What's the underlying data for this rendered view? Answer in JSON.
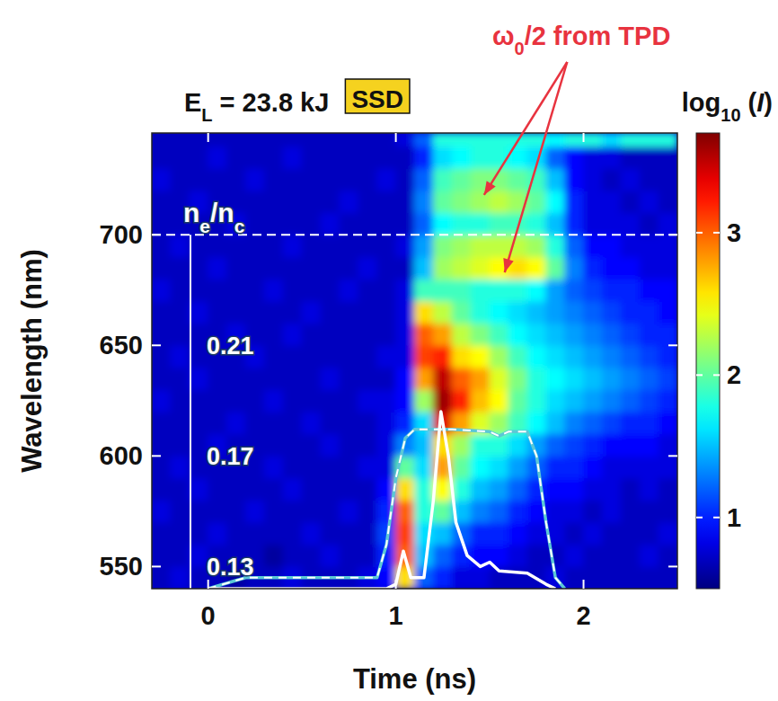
{
  "chart_data": {
    "type": "heatmap",
    "title": [
      {
        "text": "E"
      },
      {
        "text": "L",
        "sub": true
      },
      {
        "text": " = 23.8 kJ"
      }
    ],
    "badge": "SSD",
    "x_label": "Time (ns)",
    "y_label": "Wavelength (nm)",
    "xlim": [
      -0.3,
      2.5
    ],
    "ylim": [
      540,
      746
    ],
    "xticks": [
      0,
      1,
      2
    ],
    "yticks": [
      550,
      600,
      650,
      700
    ],
    "reference_line": 700,
    "density_label": [
      {
        "text": "n"
      },
      {
        "text": "e",
        "sub": true
      },
      {
        "text": "/"
      },
      {
        "text": "n"
      },
      {
        "text": "c",
        "sub": true
      }
    ],
    "density_ticks": [
      {
        "value": 650,
        "label": "0.21"
      },
      {
        "value": 600,
        "label": "0.17"
      },
      {
        "value": 550,
        "label": "0.13"
      }
    ],
    "annotation": {
      "parts": [
        {
          "text": "ω"
        },
        {
          "text": "0",
          "sub": true
        },
        {
          "text": "/2 from TPD"
        }
      ],
      "color": "#e8333f",
      "points": [
        [
          1.47,
          718
        ],
        [
          1.58,
          683
        ]
      ]
    },
    "colorbar": {
      "label": [
        {
          "text": "log"
        },
        {
          "text": "10",
          "sub": true
        },
        {
          "text": " ("
        },
        {
          "text": "I",
          "italic": true
        },
        {
          "text": ")"
        }
      ],
      "range": [
        0.5,
        3.7
      ],
      "ticks": [
        1,
        2,
        3
      ]
    },
    "x_bins": [
      -0.3,
      -0.2,
      -0.1,
      0,
      0.1,
      0.2,
      0.3,
      0.4,
      0.5,
      0.6,
      0.7,
      0.8,
      0.9,
      1.0,
      1.1,
      1.2,
      1.3,
      1.4,
      1.5,
      1.6,
      1.7,
      1.8,
      1.9,
      2.0,
      2.1,
      2.2,
      2.3,
      2.4,
      2.5
    ],
    "y_bins": [
      540,
      550,
      560,
      570,
      580,
      590,
      600,
      610,
      620,
      630,
      640,
      650,
      660,
      670,
      680,
      690,
      700,
      710,
      720,
      730,
      740,
      746
    ],
    "cells": [
      [
        0.7,
        0.8,
        0.7,
        0.7,
        0.6,
        0.7,
        0.7,
        0.8,
        0.7,
        0.7,
        0.7,
        0.8,
        0.9,
        2.6,
        1.2,
        1.0,
        0.8,
        0.8,
        0.7,
        0.7,
        0.7,
        0.8,
        0.7,
        0.7,
        0.7,
        0.7,
        0.7,
        0.7
      ],
      [
        0.7,
        0.7,
        0.8,
        0.7,
        0.7,
        0.7,
        0.6,
        0.7,
        0.7,
        0.8,
        0.7,
        0.7,
        1.0,
        3.0,
        1.5,
        1.2,
        1.0,
        0.9,
        0.9,
        0.8,
        0.7,
        0.7,
        0.8,
        0.7,
        0.7,
        0.7,
        0.8,
        0.7
      ],
      [
        0.7,
        0.7,
        0.7,
        0.8,
        0.7,
        0.7,
        0.7,
        0.7,
        0.8,
        0.7,
        0.7,
        0.7,
        1.1,
        3.1,
        1.6,
        1.5,
        1.2,
        1.0,
        1.0,
        0.9,
        0.8,
        0.8,
        0.7,
        0.8,
        0.7,
        0.7,
        0.7,
        0.8
      ],
      [
        0.8,
        0.7,
        0.7,
        0.7,
        0.7,
        0.8,
        0.7,
        0.7,
        0.7,
        0.7,
        0.8,
        0.7,
        1.0,
        3.0,
        1.8,
        2.0,
        1.5,
        1.3,
        1.2,
        1.0,
        0.9,
        0.8,
        0.8,
        0.7,
        0.8,
        0.7,
        0.7,
        0.7
      ],
      [
        0.7,
        0.7,
        0.8,
        0.7,
        0.7,
        0.7,
        0.7,
        0.8,
        0.7,
        0.7,
        0.7,
        0.7,
        0.9,
        2.6,
        1.8,
        2.5,
        1.8,
        1.5,
        1.4,
        1.2,
        1.0,
        0.9,
        0.9,
        0.8,
        0.8,
        0.7,
        0.8,
        0.7
      ],
      [
        0.7,
        0.8,
        0.7,
        0.7,
        0.7,
        0.7,
        0.8,
        0.7,
        0.7,
        0.7,
        0.7,
        0.8,
        0.8,
        2.0,
        1.6,
        2.8,
        2.0,
        1.7,
        1.6,
        1.4,
        1.2,
        1.0,
        1.0,
        0.9,
        0.8,
        0.8,
        0.8,
        0.8
      ],
      [
        0.7,
        0.7,
        0.7,
        0.8,
        0.7,
        0.7,
        0.7,
        0.7,
        0.7,
        0.8,
        0.7,
        0.7,
        0.8,
        1.3,
        1.5,
        2.6,
        2.2,
        1.8,
        1.8,
        1.6,
        1.4,
        1.2,
        1.1,
        1.0,
        0.9,
        0.9,
        0.9,
        0.8
      ],
      [
        0.7,
        0.7,
        0.7,
        0.7,
        0.8,
        0.7,
        0.7,
        0.7,
        0.8,
        0.7,
        0.7,
        0.7,
        0.8,
        1.0,
        1.6,
        3.4,
        2.8,
        2.4,
        2.2,
        1.9,
        1.7,
        1.5,
        1.3,
        1.2,
        1.1,
        1.0,
        1.0,
        0.9
      ],
      [
        0.8,
        0.7,
        0.7,
        0.7,
        0.7,
        0.7,
        0.8,
        0.7,
        0.7,
        0.7,
        0.7,
        0.8,
        0.8,
        0.9,
        2.2,
        3.6,
        3.2,
        2.7,
        2.5,
        2.0,
        1.8,
        1.6,
        1.5,
        1.4,
        1.3,
        1.2,
        1.1,
        1.0
      ],
      [
        0.7,
        0.7,
        0.8,
        0.7,
        0.7,
        0.7,
        0.7,
        0.7,
        0.7,
        0.8,
        0.7,
        0.7,
        0.7,
        0.9,
        2.8,
        3.5,
        3.0,
        2.8,
        2.4,
        2.1,
        1.8,
        1.7,
        1.6,
        1.5,
        1.4,
        1.3,
        1.2,
        1.1
      ],
      [
        0.7,
        0.8,
        0.7,
        0.7,
        0.7,
        0.8,
        0.7,
        0.7,
        0.7,
        0.7,
        0.7,
        0.7,
        0.8,
        0.8,
        3.1,
        3.2,
        2.6,
        2.5,
        2.2,
        1.9,
        1.7,
        1.6,
        1.5,
        1.4,
        1.3,
        1.2,
        1.1,
        1.0
      ],
      [
        0.7,
        0.7,
        0.7,
        0.7,
        0.8,
        0.7,
        0.7,
        0.8,
        0.7,
        0.7,
        0.7,
        0.7,
        0.7,
        0.8,
        3.0,
        2.8,
        2.3,
        2.1,
        1.9,
        1.7,
        1.6,
        1.5,
        1.4,
        1.3,
        1.2,
        1.1,
        1.0,
        1.0
      ],
      [
        0.7,
        0.7,
        0.8,
        0.7,
        0.7,
        0.7,
        0.7,
        0.7,
        0.8,
        0.7,
        0.7,
        0.7,
        0.7,
        0.8,
        2.6,
        2.3,
        2.0,
        1.8,
        1.7,
        1.6,
        1.5,
        1.4,
        1.3,
        1.2,
        1.1,
        1.0,
        1.0,
        0.9
      ],
      [
        0.8,
        0.7,
        0.7,
        0.7,
        0.7,
        0.7,
        0.8,
        0.7,
        0.7,
        0.7,
        0.8,
        0.7,
        0.7,
        0.8,
        1.9,
        1.9,
        1.9,
        1.8,
        1.8,
        1.8,
        1.7,
        1.4,
        1.2,
        1.1,
        1.0,
        1.0,
        0.9,
        0.9
      ],
      [
        0.7,
        0.7,
        0.7,
        0.8,
        0.7,
        0.7,
        0.7,
        0.7,
        0.7,
        0.7,
        0.7,
        0.8,
        0.7,
        0.7,
        1.5,
        2.2,
        2.3,
        2.4,
        2.5,
        2.6,
        2.5,
        2.0,
        1.3,
        1.0,
        0.9,
        0.9,
        0.8,
        0.8
      ],
      [
        0.7,
        0.8,
        0.7,
        0.7,
        0.7,
        0.7,
        0.7,
        0.8,
        0.7,
        0.7,
        0.7,
        0.7,
        0.7,
        0.8,
        1.4,
        2.1,
        2.2,
        2.3,
        2.3,
        2.3,
        2.2,
        1.8,
        1.2,
        0.9,
        0.9,
        0.8,
        0.8,
        0.8
      ],
      [
        0.7,
        0.7,
        0.7,
        0.7,
        0.8,
        0.7,
        0.7,
        0.7,
        0.7,
        0.8,
        0.7,
        0.7,
        0.7,
        0.7,
        1.2,
        1.7,
        1.8,
        1.8,
        1.9,
        1.9,
        1.8,
        1.5,
        1.0,
        0.8,
        0.8,
        0.8,
        0.7,
        0.8
      ],
      [
        0.7,
        0.7,
        0.8,
        0.7,
        0.7,
        0.7,
        0.7,
        0.7,
        0.7,
        0.7,
        0.8,
        0.7,
        0.7,
        0.7,
        1.3,
        2.0,
        2.1,
        2.2,
        2.3,
        2.2,
        2.0,
        1.7,
        1.0,
        0.8,
        0.8,
        0.7,
        0.8,
        0.7
      ],
      [
        0.8,
        0.7,
        0.7,
        0.7,
        0.7,
        0.8,
        0.7,
        0.7,
        0.7,
        0.7,
        0.7,
        0.7,
        0.8,
        0.7,
        1.2,
        1.9,
        2.0,
        2.1,
        2.1,
        2.0,
        1.9,
        1.5,
        0.9,
        0.8,
        0.7,
        0.8,
        0.7,
        0.7
      ],
      [
        0.7,
        0.7,
        0.7,
        0.8,
        0.7,
        0.7,
        0.7,
        0.8,
        0.7,
        0.7,
        0.7,
        0.7,
        0.7,
        0.7,
        1.0,
        1.6,
        1.7,
        1.8,
        1.8,
        1.7,
        1.6,
        1.2,
        0.9,
        0.8,
        0.8,
        0.7,
        0.7,
        0.7
      ],
      [
        0.7,
        0.7,
        0.7,
        0.7,
        0.7,
        0.7,
        0.7,
        0.7,
        0.7,
        0.7,
        0.7,
        0.7,
        0.7,
        0.8,
        1.2,
        1.8,
        1.8,
        1.8,
        1.8,
        1.8,
        1.8,
        1.7,
        1.8,
        1.8,
        1.6,
        1.8,
        1.8,
        1.8
      ]
    ],
    "series": [
      {
        "color": "#5bc8d6",
        "line_style": "dashed",
        "x": [
          0,
          0.2,
          0.9,
          0.95,
          1.0,
          1.05,
          1.1,
          1.3,
          1.5,
          1.55,
          1.6,
          1.7,
          1.75,
          1.8,
          1.85,
          1.9
        ],
        "values": [
          540,
          545,
          545,
          560,
          590,
          608,
          612,
          612,
          611,
          609,
          611,
          611,
          600,
          570,
          545,
          540
        ]
      },
      {
        "color": "#ffffff",
        "line_style": "solid",
        "x": [
          0,
          0.95,
          1.0,
          1.04,
          1.08,
          1.15,
          1.2,
          1.24,
          1.28,
          1.32,
          1.38,
          1.45,
          1.5,
          1.55,
          1.7,
          1.8,
          1.85
        ],
        "values": [
          540,
          540,
          542,
          557,
          545,
          545,
          580,
          620,
          600,
          570,
          555,
          550,
          552,
          548,
          547,
          542,
          540
        ]
      }
    ]
  }
}
